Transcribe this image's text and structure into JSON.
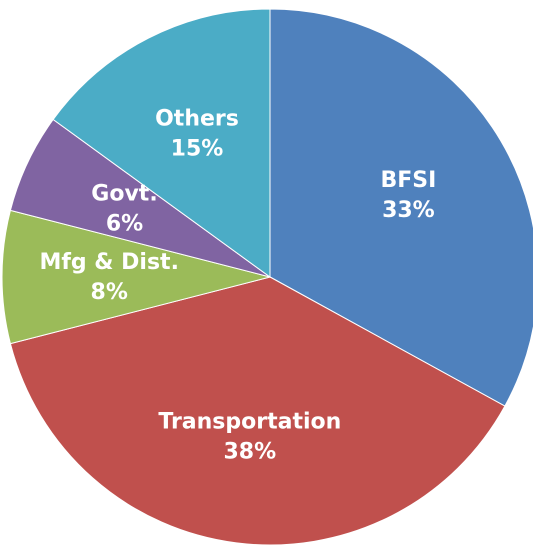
{
  "chart_data": {
    "type": "pie",
    "categories": [
      "BFSI",
      "Transportation",
      "Mfg & Dist.",
      "Govt.",
      "Others"
    ],
    "values": [
      33,
      38,
      8,
      6,
      15
    ],
    "value_labels": [
      "33%",
      "38%",
      "8%",
      "6%",
      "15%"
    ],
    "colors": [
      "#4f81bd",
      "#c0504d",
      "#9bbb59",
      "#8064a2",
      "#4bacc6"
    ]
  }
}
